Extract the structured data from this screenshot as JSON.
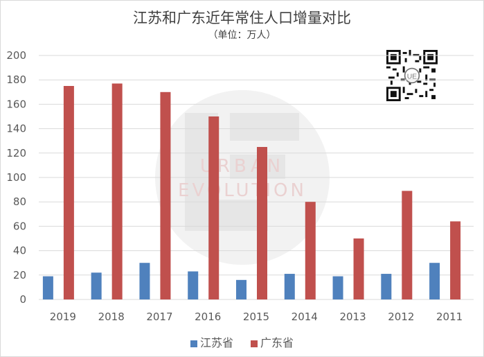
{
  "title": "江苏和广东近年常住人口增量对比",
  "subtitle": "（单位：万人）",
  "colors": {
    "jiangsu": "#4f81bd",
    "guangdong": "#c0504d",
    "grid": "#d9d9d9"
  },
  "watermark": {
    "line1": "URBAN",
    "line2": "EVOLUTION"
  },
  "icons": {
    "watermark": "ue-logo-watermark",
    "qr": "qr-code"
  },
  "chart_data": {
    "type": "bar",
    "title": "江苏和广东近年常住人口增量对比",
    "subtitle": "（单位：万人）",
    "categories": [
      "2019",
      "2018",
      "2017",
      "2016",
      "2015",
      "2014",
      "2013",
      "2012",
      "2011"
    ],
    "series": [
      {
        "name": "江苏省",
        "values": [
          19,
          22,
          30,
          23,
          16,
          21,
          19,
          21,
          30
        ]
      },
      {
        "name": "广东省",
        "values": [
          175,
          177,
          170,
          150,
          125,
          80,
          50,
          89,
          64
        ]
      }
    ],
    "ylim": [
      0,
      200
    ],
    "yticks": [
      0,
      20,
      40,
      60,
      80,
      100,
      120,
      140,
      160,
      180,
      200
    ],
    "grid": true,
    "legend": "bottom"
  }
}
